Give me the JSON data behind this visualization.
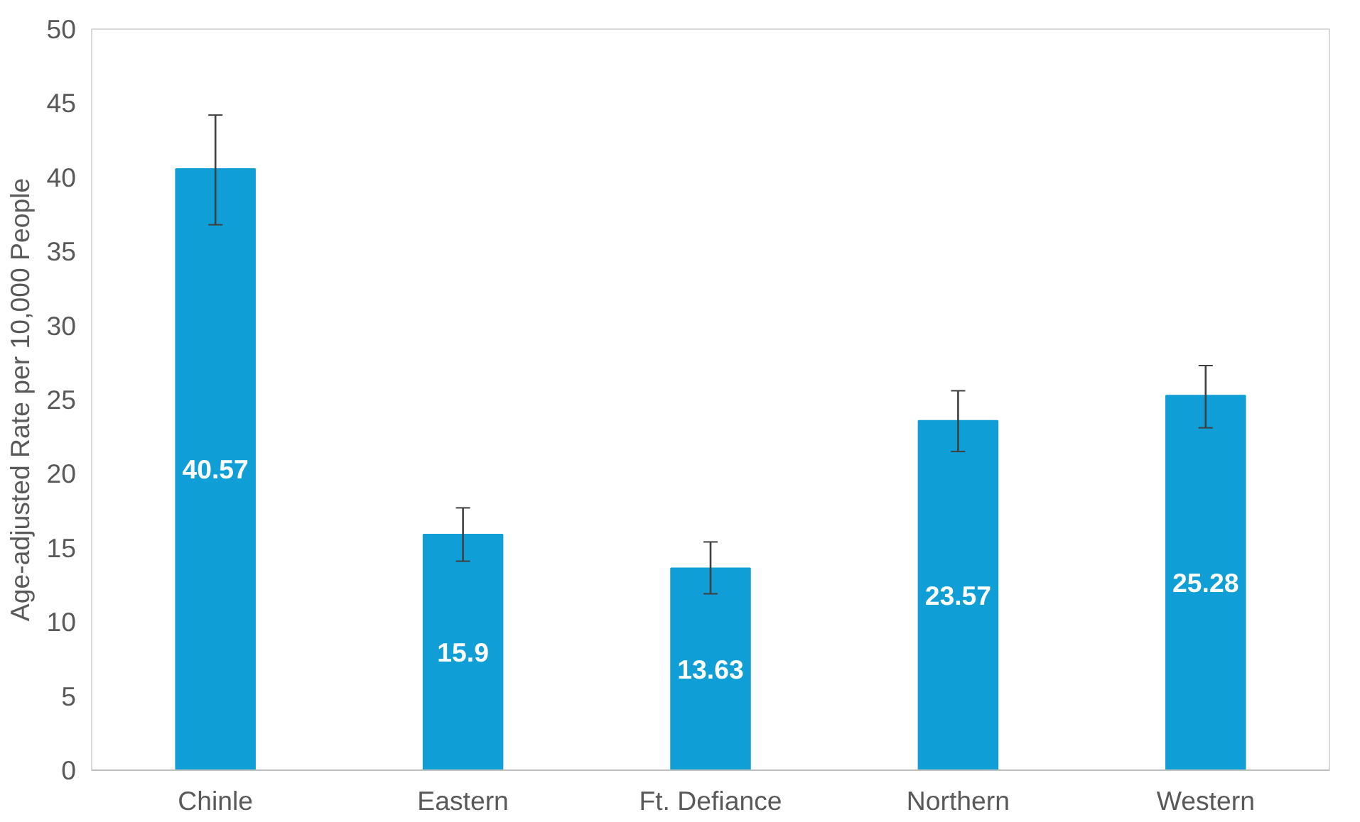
{
  "chart_data": {
    "type": "bar",
    "ylabel": "Age-adjusted Rate per 10,000 People",
    "categories": [
      "Chinle",
      "Eastern",
      "Ft. Defiance",
      "Northern",
      "Western"
    ],
    "values": [
      40.57,
      15.9,
      13.63,
      23.57,
      25.28
    ],
    "color": "#0f9ed5",
    "errors": [
      [
        36.8,
        44.2
      ],
      [
        14.1,
        17.7
      ],
      [
        11.9,
        15.4
      ],
      [
        21.5,
        25.6
      ],
      [
        23.1,
        27.3
      ]
    ],
    "ylim": [
      0,
      50
    ],
    "yticks": [
      0,
      5,
      10,
      15,
      20,
      25,
      30,
      35,
      40,
      45,
      50
    ],
    "grid": false,
    "data_labels": true
  }
}
